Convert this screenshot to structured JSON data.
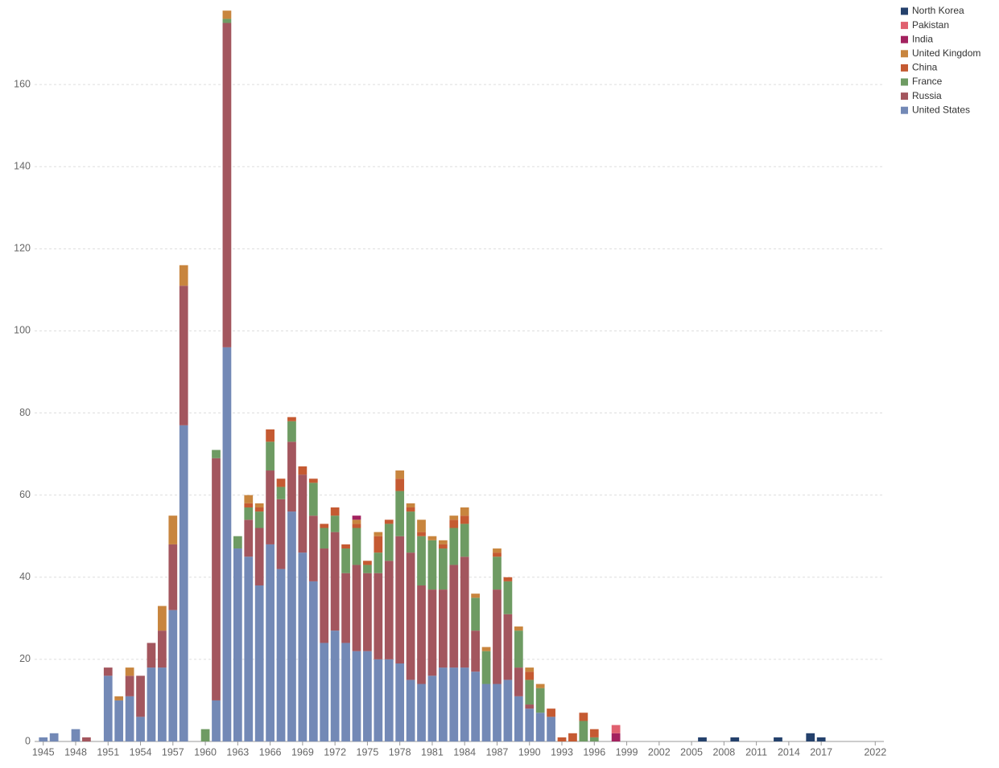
{
  "chart_data": {
    "type": "bar",
    "stacked": true,
    "legend": "top-right",
    "grid": true,
    "x": [
      1945,
      1946,
      1947,
      1948,
      1949,
      1950,
      1951,
      1952,
      1953,
      1954,
      1955,
      1956,
      1957,
      1958,
      1959,
      1960,
      1961,
      1962,
      1963,
      1964,
      1965,
      1966,
      1967,
      1968,
      1969,
      1970,
      1971,
      1972,
      1973,
      1974,
      1975,
      1976,
      1977,
      1978,
      1979,
      1980,
      1981,
      1982,
      1983,
      1984,
      1985,
      1986,
      1987,
      1988,
      1989,
      1990,
      1991,
      1992,
      1993,
      1994,
      1995,
      1996,
      1997,
      1998,
      1999,
      2000,
      2001,
      2002,
      2003,
      2004,
      2005,
      2006,
      2007,
      2008,
      2009,
      2010,
      2011,
      2012,
      2013,
      2014,
      2015,
      2016,
      2017,
      2018,
      2019,
      2020,
      2021,
      2022
    ],
    "xlim": [
      1944.2,
      2022.8
    ],
    "xticks": [
      1945,
      1948,
      1951,
      1954,
      1957,
      1960,
      1963,
      1966,
      1969,
      1972,
      1975,
      1978,
      1981,
      1984,
      1987,
      1990,
      1993,
      1996,
      1999,
      2002,
      2005,
      2008,
      2011,
      2014,
      2017,
      2022
    ],
    "ylim": [
      0,
      180
    ],
    "yticks": [
      0,
      20,
      40,
      60,
      80,
      100,
      120,
      140,
      160
    ],
    "series": [
      {
        "name": "United States",
        "color": "#7389b6",
        "values": [
          1,
          2,
          0,
          3,
          0,
          0,
          16,
          10,
          11,
          6,
          18,
          18,
          32,
          77,
          0,
          0,
          10,
          96,
          47,
          45,
          38,
          48,
          42,
          56,
          46,
          39,
          24,
          27,
          24,
          22,
          22,
          20,
          20,
          19,
          15,
          14,
          16,
          18,
          18,
          18,
          17,
          14,
          14,
          15,
          11,
          8,
          7,
          6,
          0,
          0,
          0,
          0,
          0,
          0,
          0,
          0,
          0,
          0,
          0,
          0,
          0,
          0,
          0,
          0,
          0,
          0,
          0,
          0,
          0,
          0,
          0,
          0,
          0,
          0,
          0,
          0,
          0,
          0
        ]
      },
      {
        "name": "Russia",
        "color": "#a3565e",
        "values": [
          0,
          0,
          0,
          0,
          1,
          0,
          2,
          0,
          5,
          10,
          6,
          9,
          16,
          34,
          0,
          0,
          59,
          79,
          0,
          9,
          14,
          18,
          17,
          17,
          19,
          16,
          23,
          24,
          17,
          21,
          19,
          21,
          24,
          31,
          31,
          24,
          21,
          19,
          25,
          27,
          10,
          0,
          23,
          16,
          7,
          1,
          0,
          0,
          0,
          0,
          0,
          0,
          0,
          0,
          0,
          0,
          0,
          0,
          0,
          0,
          0,
          0,
          0,
          0,
          0,
          0,
          0,
          0,
          0,
          0,
          0,
          0,
          0,
          0,
          0,
          0,
          0,
          0
        ]
      },
      {
        "name": "France",
        "color": "#6e9b63",
        "values": [
          0,
          0,
          0,
          0,
          0,
          0,
          0,
          0,
          0,
          0,
          0,
          0,
          0,
          0,
          0,
          3,
          2,
          1,
          3,
          3,
          4,
          7,
          3,
          5,
          0,
          8,
          5,
          4,
          6,
          9,
          2,
          5,
          9,
          11,
          10,
          12,
          12,
          10,
          9,
          8,
          8,
          8,
          8,
          8,
          9,
          6,
          6,
          0,
          0,
          0,
          5,
          1,
          0,
          0,
          0,
          0,
          0,
          0,
          0,
          0,
          0,
          0,
          0,
          0,
          0,
          0,
          0,
          0,
          0,
          0,
          0,
          0,
          0,
          0,
          0,
          0,
          0,
          0
        ]
      },
      {
        "name": "China",
        "color": "#c55a32",
        "values": [
          0,
          0,
          0,
          0,
          0,
          0,
          0,
          0,
          0,
          0,
          0,
          0,
          0,
          0,
          0,
          0,
          0,
          0,
          0,
          1,
          1,
          3,
          2,
          1,
          2,
          1,
          1,
          2,
          1,
          1,
          1,
          4,
          1,
          3,
          1,
          1,
          0,
          1,
          2,
          2,
          0,
          0,
          1,
          1,
          0,
          2,
          0,
          2,
          1,
          2,
          2,
          2,
          0,
          0,
          0,
          0,
          0,
          0,
          0,
          0,
          0,
          0,
          0,
          0,
          0,
          0,
          0,
          0,
          0,
          0,
          0,
          0,
          0,
          0,
          0,
          0,
          0,
          0
        ]
      },
      {
        "name": "United Kingdom",
        "color": "#c8853e",
        "values": [
          0,
          0,
          0,
          0,
          0,
          0,
          0,
          1,
          2,
          0,
          0,
          6,
          7,
          5,
          0,
          0,
          0,
          2,
          0,
          2,
          1,
          0,
          0,
          0,
          0,
          0,
          0,
          0,
          0,
          1,
          0,
          1,
          0,
          2,
          1,
          3,
          1,
          1,
          1,
          2,
          1,
          1,
          1,
          0,
          1,
          1,
          1,
          0,
          0,
          0,
          0,
          0,
          0,
          0,
          0,
          0,
          0,
          0,
          0,
          0,
          0,
          0,
          0,
          0,
          0,
          0,
          0,
          0,
          0,
          0,
          0,
          0,
          0,
          0,
          0,
          0,
          0,
          0
        ]
      },
      {
        "name": "India",
        "color": "#a3225f",
        "values": [
          0,
          0,
          0,
          0,
          0,
          0,
          0,
          0,
          0,
          0,
          0,
          0,
          0,
          0,
          0,
          0,
          0,
          0,
          0,
          0,
          0,
          0,
          0,
          0,
          0,
          0,
          0,
          0,
          0,
          1,
          0,
          0,
          0,
          0,
          0,
          0,
          0,
          0,
          0,
          0,
          0,
          0,
          0,
          0,
          0,
          0,
          0,
          0,
          0,
          0,
          0,
          0,
          0,
          2,
          0,
          0,
          0,
          0,
          0,
          0,
          0,
          0,
          0,
          0,
          0,
          0,
          0,
          0,
          0,
          0,
          0,
          0,
          0,
          0,
          0,
          0,
          0,
          0
        ]
      },
      {
        "name": "Pakistan",
        "color": "#e0606f",
        "values": [
          0,
          0,
          0,
          0,
          0,
          0,
          0,
          0,
          0,
          0,
          0,
          0,
          0,
          0,
          0,
          0,
          0,
          0,
          0,
          0,
          0,
          0,
          0,
          0,
          0,
          0,
          0,
          0,
          0,
          0,
          0,
          0,
          0,
          0,
          0,
          0,
          0,
          0,
          0,
          0,
          0,
          0,
          0,
          0,
          0,
          0,
          0,
          0,
          0,
          0,
          0,
          0,
          0,
          2,
          0,
          0,
          0,
          0,
          0,
          0,
          0,
          0,
          0,
          0,
          0,
          0,
          0,
          0,
          0,
          0,
          0,
          0,
          0,
          0,
          0,
          0,
          0,
          0
        ]
      },
      {
        "name": "North Korea",
        "color": "#24416c",
        "values": [
          0,
          0,
          0,
          0,
          0,
          0,
          0,
          0,
          0,
          0,
          0,
          0,
          0,
          0,
          0,
          0,
          0,
          0,
          0,
          0,
          0,
          0,
          0,
          0,
          0,
          0,
          0,
          0,
          0,
          0,
          0,
          0,
          0,
          0,
          0,
          0,
          0,
          0,
          0,
          0,
          0,
          0,
          0,
          0,
          0,
          0,
          0,
          0,
          0,
          0,
          0,
          0,
          0,
          0,
          0,
          0,
          0,
          0,
          0,
          0,
          0,
          1,
          0,
          0,
          1,
          0,
          0,
          0,
          1,
          0,
          0,
          2,
          1,
          0,
          0,
          0,
          0,
          0
        ]
      }
    ]
  }
}
